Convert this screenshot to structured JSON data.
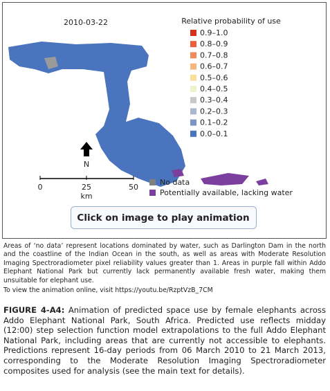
{
  "figure": {
    "date": "2010-03-22",
    "legend_title": "Relative probability of use",
    "legend": [
      {
        "label": "0.9–1.0",
        "color": "#d7301f"
      },
      {
        "label": "0.8–0.9",
        "color": "#ec5f3c"
      },
      {
        "label": "0.7–0.8",
        "color": "#f08a5d"
      },
      {
        "label": "0.6–0.7",
        "color": "#f5b77d"
      },
      {
        "label": "0.5–0.6",
        "color": "#f8df9a"
      },
      {
        "label": "0.4–0.5",
        "color": "#eef1c9"
      },
      {
        "label": "0.3–0.4",
        "color": "#c8c8c8"
      },
      {
        "label": "0.2–0.3",
        "color": "#a9b8cb"
      },
      {
        "label": "0.1–0.2",
        "color": "#7b96c4"
      },
      {
        "label": "0.0–0.1",
        "color": "#4a74bd"
      }
    ],
    "north": "N",
    "scale": {
      "labels": [
        "0",
        "25",
        "50"
      ],
      "unit": "km"
    },
    "extra_legend": [
      {
        "label": "No data",
        "color": "#808080"
      },
      {
        "label": "Potentially available, lacking water",
        "color": "#7b3f9e"
      }
    ],
    "button": "Click on image to play animation"
  },
  "notes": [
    "Areas of ‘no data’ represent locations dominated by water, such as Darlington Dam in the north and the coastline of the Indian Ocean in the south, as well as areas with Moderate Resolution Imaging Spectroradiometer pixel reliability values greater than 1. Areas in purple fall within Addo Elephant National Park but currently lack permanently available fresh water, making them unsuitable for elephant use.",
    "To view the animation online, visit https://youtu.be/RzptVzB_7CM"
  ],
  "caption": {
    "label": "FIGURE 4-A4:",
    "text": "Animation of predicted space use by female elephants across Addo Elephant National Park, South Africa. Predicted use reflects midday (12:00) step selection function model extrapolations to the full Addo Elephant National Park, including areas that are currently not accessible to elephants. Predictions represent 16-day periods from 06 March 2010 to 21 March 2013, corresponding to the Moderate Resolution Imaging Spectroradiometer composites used for analysis (see the main text for details)."
  }
}
